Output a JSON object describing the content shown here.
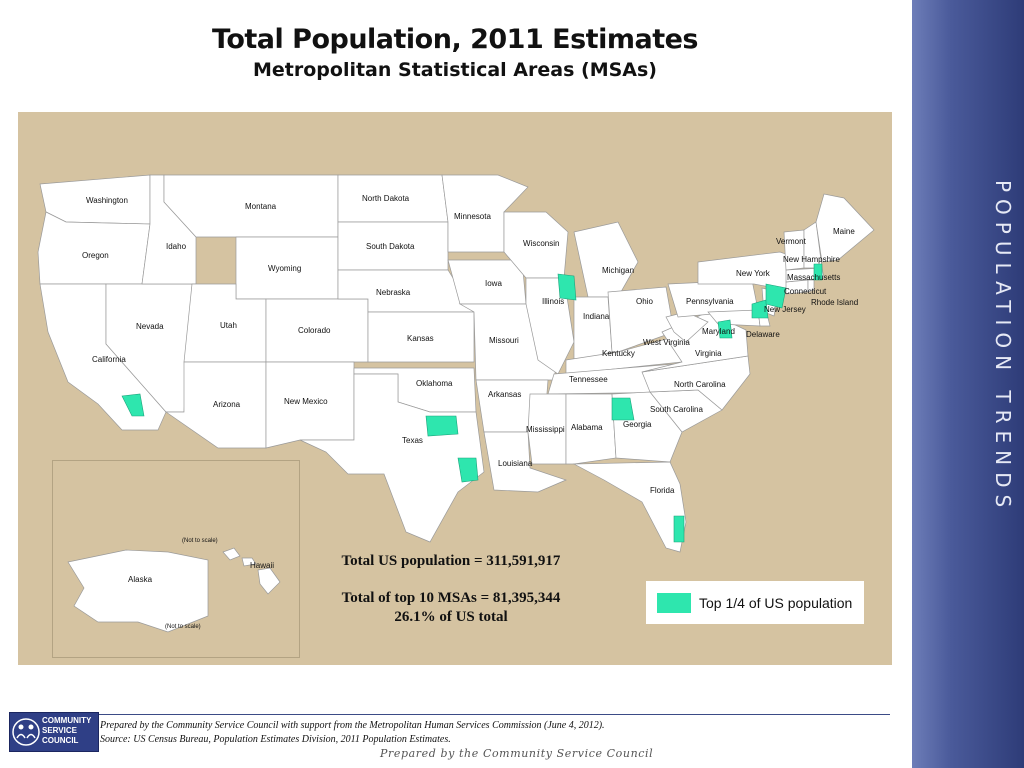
{
  "title": "Total Population, 2011 Estimates",
  "subtitle": "Metropolitan Statistical Areas (MSAs)",
  "side_title": "Population Trends",
  "colors": {
    "map_background": "#d5c3a1",
    "state_fill": "#ffffff",
    "msa_fill": "#2ee6ae",
    "side_bar": "#3b4b86"
  },
  "states": {
    "washington": "Washington",
    "oregon": "Oregon",
    "california": "California",
    "nevada": "Nevada",
    "idaho": "Idaho",
    "montana": "Montana",
    "wyoming": "Wyoming",
    "utah": "Utah",
    "arizona": "Arizona",
    "colorado": "Colorado",
    "new_mexico": "New Mexico",
    "north_dakota": "North Dakota",
    "south_dakota": "South Dakota",
    "nebraska": "Nebraska",
    "kansas": "Kansas",
    "oklahoma": "Oklahoma",
    "texas": "Texas",
    "minnesota": "Minnesota",
    "iowa": "Iowa",
    "missouri": "Missouri",
    "arkansas": "Arkansas",
    "louisiana": "Louisiana",
    "wisconsin": "Wisconsin",
    "illinois": "Illinois",
    "michigan": "Michigan",
    "indiana": "Indiana",
    "ohio": "Ohio",
    "kentucky": "Kentucky",
    "tennessee": "Tennessee",
    "mississippi": "Mississippi",
    "alabama": "Alabama",
    "georgia": "Georgia",
    "florida": "Florida",
    "south_carolina": "South Carolina",
    "north_carolina": "North Carolina",
    "virginia": "Virginia",
    "west_virginia": "West Virginia",
    "pennsylvania": "Pennsylvania",
    "new_york": "New York",
    "maryland": "Maryland",
    "delaware": "Delaware",
    "new_jersey": "New Jersey",
    "connecticut": "Connecticut",
    "rhode_island": "Rhode Island",
    "massachusetts": "Massachusetts",
    "vermont": "Vermont",
    "new_hampshire": "New Hampshire",
    "maine": "Maine",
    "alaska": "Alaska",
    "hawaii": "Hawaii"
  },
  "not_to_scale_hawaii": "(Not to scale)",
  "not_to_scale_alaska": "(Not to scale)",
  "totals": {
    "us_population": "Total US population = 311,591,917",
    "top10_total": "Total of top 10 MSAs = 81,395,344",
    "top10_share": "26.1% of US total"
  },
  "legend": {
    "label": "Top 1/4 of US population",
    "color": "#2ee6ae"
  },
  "footer": {
    "note_line1": "Prepared by the Community Service Council with support from the Metropolitan Human Services Commission (June 4, 2012).",
    "note_line2": "Source:  US Census Bureau, Population Estimates Division, 2011 Population Estimates.",
    "prepared_by": "Prepared by the Community Service Council",
    "logo_line1": "COMMUNITY",
    "logo_line2": "SERVICE",
    "logo_line3": "COUNCIL"
  }
}
